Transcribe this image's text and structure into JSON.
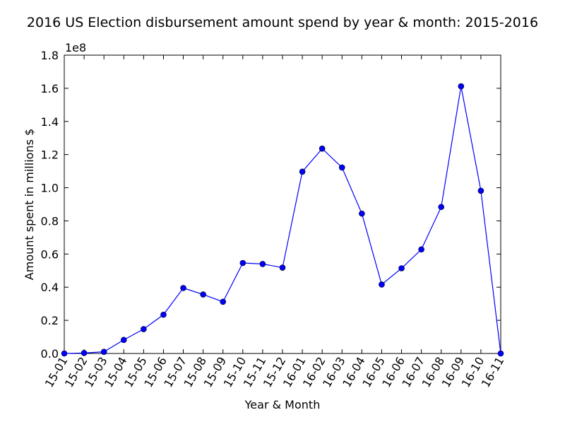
{
  "chart_data": {
    "type": "line",
    "title": "2016 US Election disbursement amount spend by year & month: 2015-2016",
    "xlabel": "Year & Month",
    "ylabel": "Amount spent in millions $",
    "y_offset_label": "1e8",
    "ylim": [
      0,
      1.8
    ],
    "y_ticks": [
      "0.0",
      "0.2",
      "0.4",
      "0.6",
      "0.8",
      "1.0",
      "1.2",
      "1.4",
      "1.6",
      "1.8"
    ],
    "categories": [
      "15-01",
      "15-02",
      "15-03",
      "15-04",
      "15-05",
      "15-06",
      "15-07",
      "15-08",
      "15-09",
      "15-10",
      "15-11",
      "15-12",
      "16-01",
      "16-02",
      "16-03",
      "16-04",
      "16-05",
      "16-06",
      "16-07",
      "16-08",
      "16-09",
      "16-10",
      "16-11"
    ],
    "series": [
      {
        "color": "#0000ff",
        "values": [
          0.0,
          0.003,
          0.01,
          0.082,
          0.147,
          0.234,
          0.395,
          0.356,
          0.312,
          0.546,
          0.54,
          0.518,
          1.097,
          1.236,
          1.122,
          0.844,
          0.416,
          0.514,
          0.628,
          0.884,
          1.612,
          0.982,
          0.0
        ]
      }
    ],
    "grid": false
  }
}
